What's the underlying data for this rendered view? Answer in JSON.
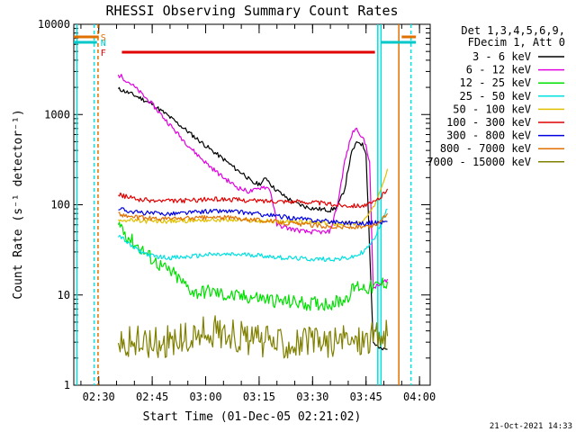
{
  "chart_data": {
    "type": "line",
    "title": "RHESSI Observing Summary Count Rates",
    "xlabel": "Start Time (01-Dec-05 02:21:02)",
    "ylabel": "Count Rate (s⁻¹ detector⁻¹)",
    "timestamp": "21-Oct-2021 14:33",
    "x_range_minutes": [
      2.0,
      102.0
    ],
    "ylim": [
      1,
      10000
    ],
    "yscale": "log",
    "x_ticks": [
      {
        "m": 9,
        "label": "02:30"
      },
      {
        "m": 24,
        "label": "02:45"
      },
      {
        "m": 39,
        "label": "03:00"
      },
      {
        "m": 54,
        "label": "03:15"
      },
      {
        "m": 69,
        "label": "03:30"
      },
      {
        "m": 84,
        "label": "03:45"
      },
      {
        "m": 99,
        "label": "04:00"
      }
    ],
    "y_ticks": [
      {
        "v": 1,
        "label": "1"
      },
      {
        "v": 10,
        "label": "10"
      },
      {
        "v": 100,
        "label": "100"
      },
      {
        "v": 1000,
        "label": "1000"
      },
      {
        "v": 10000,
        "label": "10000"
      }
    ],
    "legend_header": [
      "Det 1,3,4,5,6,9,",
      "FDecim 1, Att 0"
    ],
    "legend_position": "right",
    "flags": [
      {
        "label": "S",
        "color": "#e07000"
      },
      {
        "label": "N",
        "color": "#00c8c8"
      },
      {
        "label": "F",
        "color": "#e00000"
      }
    ],
    "series": [
      {
        "name": "3 - 6 keV",
        "color": "#000000",
        "x": [
          14.5,
          15,
          18,
          21,
          24,
          28,
          32,
          36,
          40,
          44,
          48,
          50,
          52,
          54,
          55,
          56,
          58,
          61,
          64,
          67,
          70,
          73,
          74,
          76,
          78,
          79,
          80,
          81,
          82,
          83,
          84,
          86,
          88,
          89,
          90
        ],
        "y": [
          1900,
          1900,
          1700,
          1500,
          1300,
          1000,
          750,
          560,
          420,
          320,
          240,
          215,
          175,
          170,
          180,
          200,
          155,
          125,
          105,
          95,
          90,
          88,
          87,
          95,
          150,
          250,
          380,
          460,
          500,
          460,
          380,
          3,
          2.5,
          2.5,
          2.5
        ]
      },
      {
        "name": "6 - 12 keV",
        "color": "#e000e0",
        "x": [
          14.5,
          15,
          18,
          21,
          24,
          28,
          32,
          36,
          40,
          44,
          48,
          51,
          53,
          55,
          57,
          58,
          59,
          62,
          65,
          67,
          69,
          71,
          73,
          74,
          76,
          78,
          80,
          81,
          82,
          83,
          84,
          85,
          86,
          88,
          90
        ],
        "y": [
          2700,
          2700,
          2200,
          1700,
          1300,
          850,
          560,
          380,
          270,
          200,
          155,
          140,
          145,
          160,
          150,
          100,
          60,
          55,
          52,
          50,
          50,
          50,
          49,
          52,
          100,
          300,
          600,
          700,
          650,
          550,
          450,
          300,
          12,
          13,
          15
        ]
      },
      {
        "name": "12 - 25 keV",
        "color": "#00e000",
        "x": [
          14.5,
          15,
          17,
          19,
          21,
          24,
          27,
          30,
          33,
          36,
          40,
          44,
          48,
          52,
          56,
          60,
          64,
          68,
          72,
          75,
          78,
          80,
          81,
          82,
          84,
          86,
          88,
          90
        ],
        "y": [
          60,
          60,
          45,
          37,
          32,
          25,
          20,
          17,
          13,
          10.5,
          11,
          10,
          9.5,
          9.5,
          9,
          8.5,
          8.3,
          8.0,
          8.0,
          8.2,
          9.0,
          11.0,
          12.5,
          12.5,
          12.0,
          12,
          13,
          14
        ]
      },
      {
        "name": "25 - 50 keV",
        "color": "#00e0e0",
        "x": [
          14.5,
          15,
          18,
          21,
          24,
          28,
          32,
          36,
          40,
          44,
          48,
          52,
          56,
          60,
          64,
          68,
          72,
          76,
          80,
          82,
          84,
          86,
          88,
          90
        ],
        "y": [
          45,
          45,
          35,
          30,
          27,
          26,
          26,
          27,
          28,
          28,
          28,
          28,
          27,
          26,
          25.5,
          25,
          25,
          25,
          26,
          28,
          32,
          40,
          60,
          90
        ]
      },
      {
        "name": "50 - 100 keV",
        "color": "#e0c000",
        "x": [
          14.5,
          16,
          20,
          25,
          30,
          35,
          40,
          45,
          50,
          55,
          60,
          65,
          70,
          75,
          80,
          83,
          86,
          88,
          90
        ],
        "y": [
          70,
          68,
          66,
          65,
          66,
          67,
          68,
          68,
          67,
          66,
          65,
          64,
          63,
          62,
          62,
          64,
          90,
          150,
          250
        ]
      },
      {
        "name": "100 - 300 keV",
        "color": "#e00000",
        "x": [
          14.5,
          16,
          20,
          25,
          30,
          35,
          40,
          45,
          50,
          55,
          60,
          65,
          70,
          75,
          80,
          84,
          86,
          88,
          90
        ],
        "y": [
          130,
          125,
          115,
          110,
          110,
          112,
          115,
          115,
          112,
          110,
          110,
          108,
          106,
          100,
          98,
          98,
          105,
          120,
          150
        ]
      },
      {
        "name": "300 - 800 keV",
        "color": "#0000e0",
        "x": [
          14.5,
          16,
          20,
          25,
          30,
          35,
          40,
          45,
          50,
          55,
          60,
          65,
          70,
          75,
          80,
          84,
          86,
          88,
          90
        ],
        "y": [
          92,
          88,
          82,
          80,
          80,
          82,
          85,
          85,
          82,
          78,
          74,
          70,
          67,
          65,
          63,
          62,
          63,
          64,
          65
        ]
      },
      {
        "name": "800 - 7000 keV",
        "color": "#e07000",
        "x": [
          14.5,
          16,
          20,
          25,
          30,
          35,
          40,
          45,
          50,
          55,
          60,
          65,
          70,
          75,
          80,
          84,
          86,
          88,
          90
        ],
        "y": [
          80,
          76,
          72,
          70,
          70,
          71,
          72,
          72,
          70,
          67,
          64,
          61,
          59,
          57,
          56,
          56,
          58,
          65,
          80
        ]
      },
      {
        "name": "7000 - 15000 keV",
        "color": "#808000",
        "x": [
          14.5,
          15,
          16,
          20,
          25,
          30,
          35,
          38,
          40,
          45,
          50,
          55,
          60,
          65,
          70,
          75,
          80,
          84,
          86,
          88,
          90
        ],
        "y": [
          4.0,
          3.2,
          3.0,
          3.0,
          3.0,
          3.1,
          3.3,
          3.8,
          4.0,
          3.8,
          3.3,
          3.0,
          3.0,
          3.0,
          3.0,
          3.0,
          3.1,
          3.3,
          3.5,
          3.5,
          3.5
        ]
      }
    ]
  }
}
